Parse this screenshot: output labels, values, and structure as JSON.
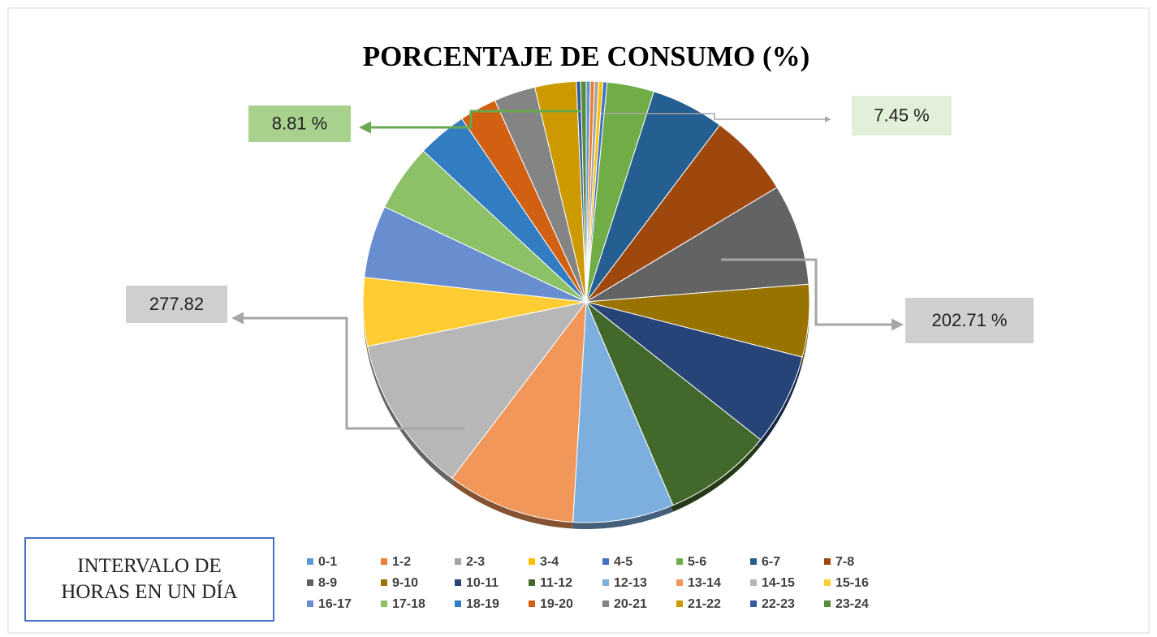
{
  "chart_data": {
    "type": "pie",
    "title": "PORCENTAJE DE CONSUMO (%)",
    "legend_title": "INTERVALO DE HORAS EN UN DÍA",
    "categories": [
      "0-1",
      "1-2",
      "2-3",
      "3-4",
      "4-5",
      "5-6",
      "6-7",
      "7-8",
      "8-9",
      "9-10",
      "10-11",
      "11-12",
      "12-13",
      "13-14",
      "14-15",
      "15-16",
      "16-17",
      "17-18",
      "18-19",
      "19-20",
      "20-21",
      "21-22",
      "22-23",
      "23-24"
    ],
    "values": [
      0.3,
      0.3,
      0.3,
      0.3,
      0.3,
      3.4,
      5.3,
      6.1,
      7.4,
      5.3,
      6.7,
      7.9,
      7.3,
      9.3,
      11.5,
      5.0,
      5.3,
      4.9,
      3.6,
      2.7,
      3.0,
      3.0,
      0.3,
      0.4
    ],
    "colors": [
      "#5b9bd5",
      "#ed7d31",
      "#a5a5a5",
      "#ffc000",
      "#4472c4",
      "#70ad47",
      "#255e91",
      "#9e480e",
      "#636363",
      "#997300",
      "#264478",
      "#43682b",
      "#7cafdd",
      "#f1975a",
      "#b7b7b7",
      "#ffcd33",
      "#698ed0",
      "#8cc168",
      "#327dc2",
      "#d26012",
      "#848484",
      "#cc9a00",
      "#335aa1",
      "#5a8a39"
    ],
    "annotations": [
      "8.81 %",
      "7.45 %",
      "277.82",
      "202.71 %"
    ]
  }
}
